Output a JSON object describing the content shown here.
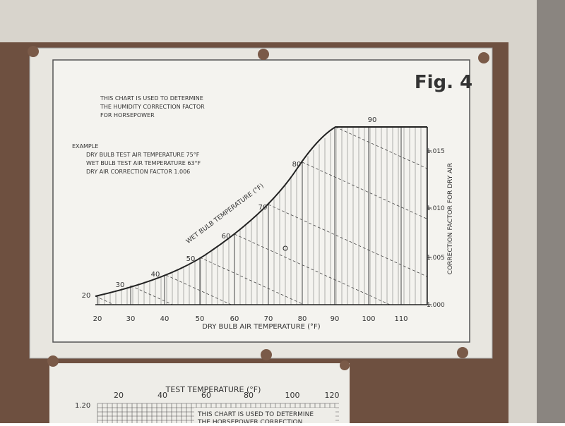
{
  "figure": "Fig. 4",
  "description": [
    "THIS CHART IS USED TO DETERMINE",
    "THE HUMIDITY CORRECTION FACTOR",
    "FOR HORSEPOWER"
  ],
  "example": {
    "title": "EXAMPLE",
    "lines": [
      "DRY BULB TEST AIR TEMPERATURE 75°F",
      "WET BULB TEST AIR TEMPERATURE 63°F",
      "DRY AIR CORRECTION FACTOR 1.006"
    ]
  },
  "dry_bulb_axis": {
    "label": "DRY BULB AIR TEMPERATURE (°F)",
    "ticks": [
      "20",
      "30",
      "40",
      "50",
      "60",
      "70",
      "80",
      "90",
      "100",
      "110"
    ]
  },
  "wet_bulb_curve": {
    "label": "WET BULB TEMPERATURE (°F)",
    "ticks": [
      "20",
      "30",
      "40",
      "50",
      "60",
      "70",
      "80",
      "90"
    ]
  },
  "correction_axis": {
    "label": "CORRECTION FACTOR FOR DRY AIR",
    "ticks": [
      "1.000",
      "1.005",
      "1.010",
      "1.015"
    ]
  },
  "lower_chart": {
    "title": "TEST TEMPERATURE (°F)",
    "ticks": [
      "20",
      "40",
      "60",
      "80",
      "100",
      "120"
    ],
    "y_tick": "1.20",
    "lines": [
      "THIS CHART IS USED TO DETERMINE",
      "THE HORSEPOWER CORRECTION"
    ]
  }
}
